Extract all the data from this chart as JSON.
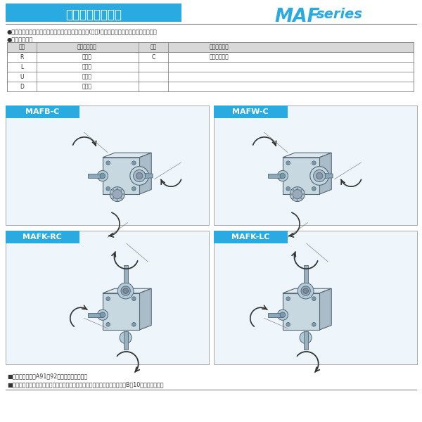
{
  "title": "軸配置と回転方向",
  "series_label": "MAFseries",
  "cyan": "#29abe2",
  "dark": "#333333",
  "gray": "#888888",
  "light_panel": "#f0f7fb",
  "white": "#ffffff",
  "bullet1": "●軸配置は入力軸またはモータを手前にして出力軸(青色)の出ている方向で決定して下さい。",
  "bullet2": "●軸配置の記号",
  "thead": [
    "記号",
    "出力軸の方向",
    "記号",
    "出力軸の方向"
  ],
  "trows": [
    [
      "R",
      "右　側",
      "C",
      "出力軸回転軸"
    ],
    [
      "L",
      "左　側",
      "",
      ""
    ],
    [
      "U",
      "上　側",
      "",
      ""
    ],
    [
      "D",
      "下　側",
      "",
      ""
    ]
  ],
  "panels": [
    "MAFB-C",
    "MAFW-C",
    "MAFK-RC",
    "MAFK-LC"
  ],
  "footer1": "■軸配置の詳細はA91・92を参照して下さい。",
  "footer2": "■特殊な取付状態については、当社へお問い合わせ下さい。なお、参考としてB－10をご覧下さい。"
}
